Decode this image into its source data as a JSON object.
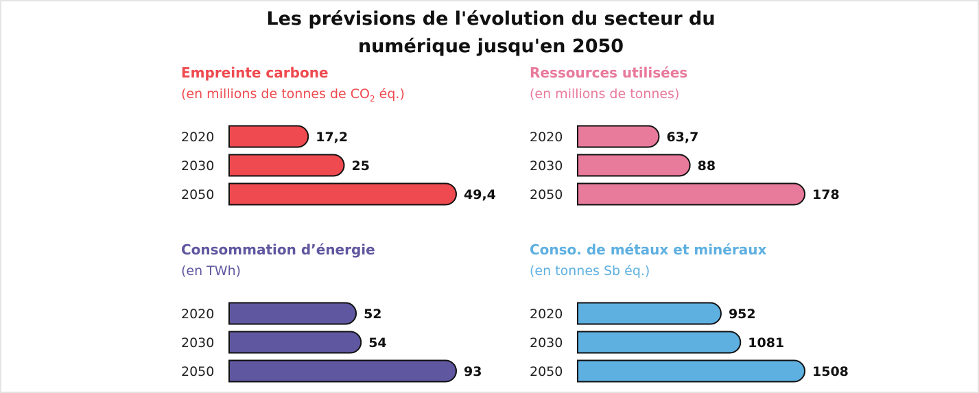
{
  "title_line1": "Les prévisions de l'évolution du secteur du",
  "title_line2": "numérique jusqu'en 2050",
  "chart_data": [
    {
      "type": "bar",
      "orientation": "horizontal",
      "title": "Empreinte carbone",
      "subtitle_pre": "(en millions de tonnes de CO",
      "subtitle_sub": "2",
      "subtitle_post": " éq.)",
      "color": "#ee4a4f",
      "categories": [
        "2020",
        "2030",
        "2050"
      ],
      "values": [
        17.2,
        25,
        49.4
      ],
      "labels": [
        "17,2",
        "25",
        "49,4"
      ]
    },
    {
      "type": "bar",
      "orientation": "horizontal",
      "title": "Ressources utilisées",
      "subtitle_pre": "(en millions de tonnes)",
      "subtitle_sub": "",
      "subtitle_post": "",
      "color": "#e87a9c",
      "categories": [
        "2020",
        "2030",
        "2050"
      ],
      "values": [
        63.7,
        88,
        178
      ],
      "labels": [
        "63,7",
        "88",
        "178"
      ]
    },
    {
      "type": "bar",
      "orientation": "horizontal",
      "title": "Consommation d’énergie",
      "subtitle_pre": "(en TWh)",
      "subtitle_sub": "",
      "subtitle_post": "",
      "color": "#5f579f",
      "categories": [
        "2020",
        "2030",
        "2050"
      ],
      "values": [
        52,
        54,
        93
      ],
      "labels": [
        "52",
        "54",
        "93"
      ]
    },
    {
      "type": "bar",
      "orientation": "horizontal",
      "title": "Conso. de métaux et minéraux",
      "subtitle_pre": "(en tonnes Sb éq.)",
      "subtitle_sub": "",
      "subtitle_post": "",
      "color": "#5eb0e1",
      "categories": [
        "2020",
        "2030",
        "2050"
      ],
      "values": [
        952,
        1081,
        1508
      ],
      "labels": [
        "952",
        "1081",
        "1508"
      ]
    }
  ]
}
